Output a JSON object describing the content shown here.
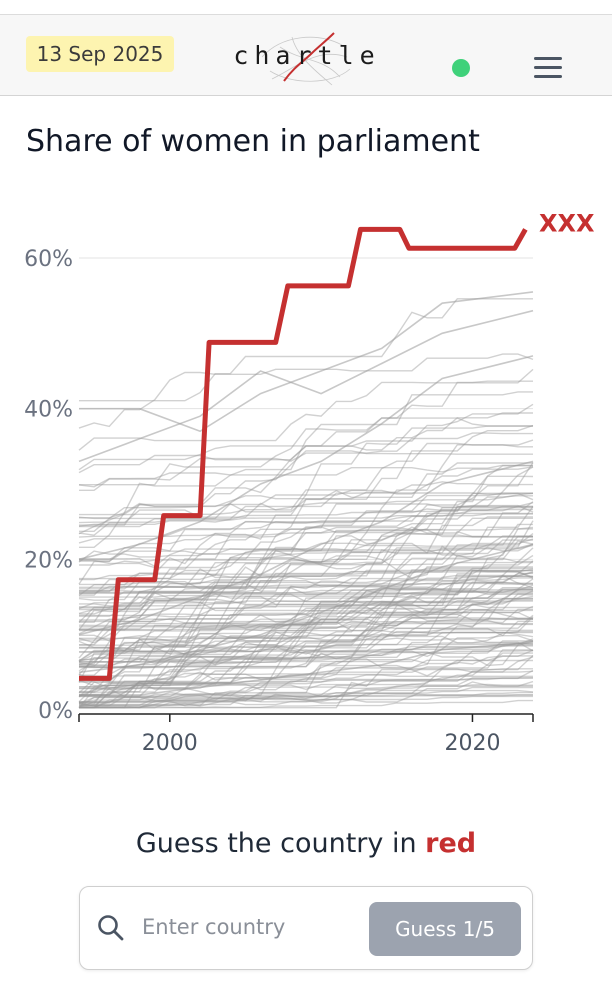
{
  "header": {
    "date": "13 Sep 2025",
    "logo_text": "chartle",
    "status_color": "#3fd17a",
    "menu_icon": "hamburger-menu-icon"
  },
  "page_title": "Share of women in parliament",
  "chart_data": {
    "type": "line",
    "title": "Share of women in parliament",
    "xlabel": "",
    "ylabel": "",
    "xlim": [
      1994,
      2024
    ],
    "ylim": [
      0,
      65
    ],
    "x_ticks": [
      2000,
      2020
    ],
    "x_tick_labels": [
      "2000",
      "2020"
    ],
    "y_ticks": [
      0,
      20,
      40,
      60
    ],
    "y_tick_labels": [
      "0%",
      "20%",
      "40%",
      "60%"
    ],
    "grid": "horizontal",
    "highlight_color": "#c53030",
    "background_color": "#9a9a9a",
    "highlight_series": {
      "name": "XXX",
      "x": [
        1994,
        1996,
        1996.6,
        1999,
        1999.6,
        2002,
        2002.6,
        2007,
        2007.8,
        2011.8,
        2012.6,
        2015.2,
        2015.8,
        2022.8,
        2023.5
      ],
      "y": [
        4.2,
        4.2,
        17.3,
        17.3,
        25.8,
        25.8,
        48.8,
        48.8,
        56.3,
        56.3,
        63.8,
        63.8,
        61.3,
        61.3,
        63.8
      ]
    },
    "background_series_count": 150,
    "background_series_sample": [
      {
        "x": [
          1994,
          1998,
          2002,
          2006,
          2010,
          2014,
          2018,
          2024
        ],
        "y": [
          40,
          40,
          37,
          42,
          45,
          48,
          54,
          55.5
        ]
      },
      {
        "x": [
          1994,
          1998,
          2002,
          2006,
          2010,
          2014,
          2018,
          2024
        ],
        "y": [
          33,
          36,
          39,
          45,
          42,
          46,
          50,
          53
        ]
      },
      {
        "x": [
          1994,
          1998,
          2002,
          2006,
          2010,
          2014,
          2018,
          2024
        ],
        "y": [
          20,
          22,
          25,
          30,
          33,
          38,
          44,
          47
        ]
      },
      {
        "x": [
          1994,
          1998,
          2002,
          2006,
          2010,
          2014,
          2018,
          2024
        ],
        "y": [
          10,
          12,
          15,
          18,
          22,
          25,
          30,
          33
        ]
      },
      {
        "x": [
          1994,
          1998,
          2002,
          2006,
          2010,
          2014,
          2018,
          2024
        ],
        "y": [
          5,
          6,
          8,
          10,
          13,
          16,
          19,
          22
        ]
      },
      {
        "x": [
          1994,
          1998,
          2002,
          2006,
          2010,
          2014,
          2018,
          2024
        ],
        "y": [
          2,
          2,
          3,
          4,
          5,
          6,
          8,
          9
        ]
      }
    ]
  },
  "prompt": {
    "before": "Guess the country in ",
    "accent": "red",
    "accent_color": "#c53030"
  },
  "search": {
    "placeholder": "Enter country",
    "value": "",
    "button_label": "Guess 1/5",
    "search_icon": "search-icon"
  }
}
